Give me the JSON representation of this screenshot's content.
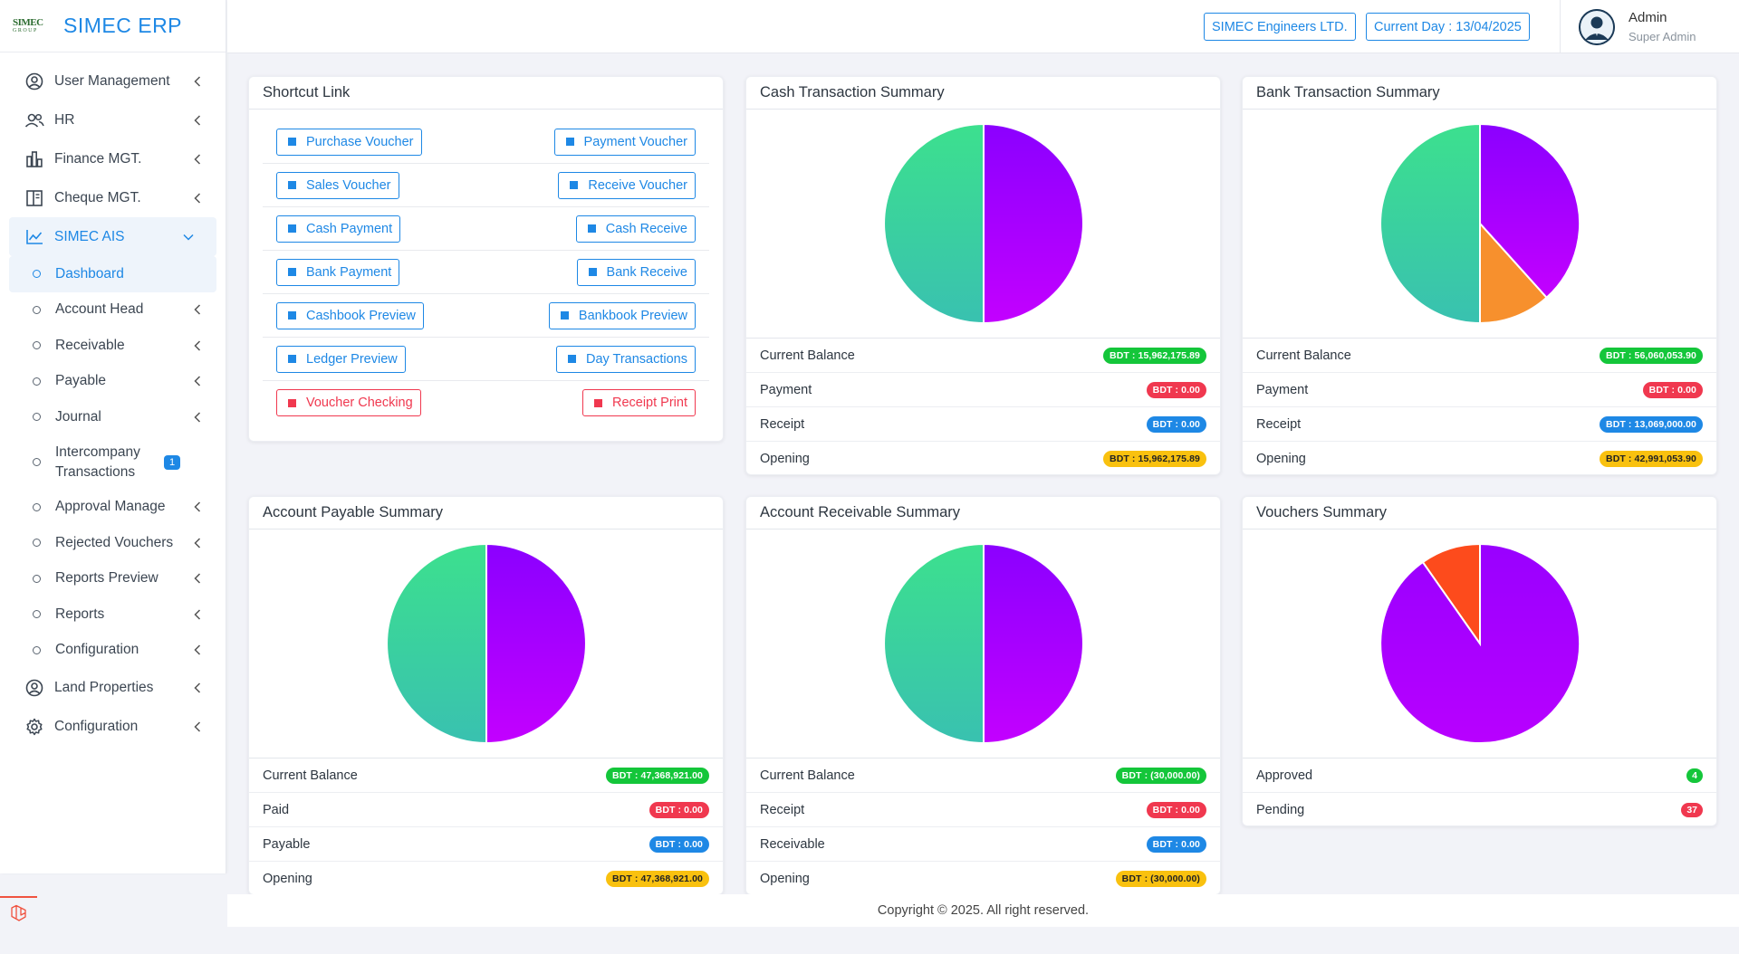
{
  "brand": {
    "logo_top": "SIMEC",
    "logo_bottom": "GROUP",
    "name": "SIMEC ERP"
  },
  "header": {
    "company": "SIMEC Engineers LTD.",
    "current_day": "Current Day : 13/04/2025",
    "user_name": "Admin",
    "user_role": "Super Admin"
  },
  "sidebar": {
    "items": [
      {
        "label": "User Management",
        "icon": "user-circle-icon"
      },
      {
        "label": "HR",
        "icon": "users-icon"
      },
      {
        "label": "Finance MGT.",
        "icon": "bar-chart-icon"
      },
      {
        "label": "Cheque MGT.",
        "icon": "book-icon"
      },
      {
        "label": "SIMEC AIS",
        "icon": "line-chart-icon"
      }
    ],
    "sub_items": [
      {
        "label": "Dashboard"
      },
      {
        "label": "Account Head"
      },
      {
        "label": "Receivable"
      },
      {
        "label": "Payable"
      },
      {
        "label": "Journal"
      },
      {
        "label": "Intercompany Transactions",
        "badge": "1"
      },
      {
        "label": "Approval Manage"
      },
      {
        "label": "Rejected Vouchers"
      },
      {
        "label": "Reports Preview"
      },
      {
        "label": "Reports"
      },
      {
        "label": "Configuration"
      }
    ],
    "bottom_items": [
      {
        "label": "Land Properties",
        "icon": "user-circle-icon"
      },
      {
        "label": "Configuration",
        "icon": "gear-icon"
      }
    ]
  },
  "shortcut": {
    "title": "Shortcut Link",
    "rows": [
      [
        "Purchase Voucher",
        "Payment Voucher"
      ],
      [
        "Sales Voucher",
        "Receive Voucher"
      ],
      [
        "Cash Payment",
        "Cash Receive"
      ],
      [
        "Bank Payment",
        "Bank Receive"
      ],
      [
        "Cashbook Preview",
        "Bankbook Preview"
      ],
      [
        "Ledger Preview",
        "Day Transactions"
      ],
      [
        "Voucher Checking",
        "Receipt Print"
      ]
    ]
  },
  "cash": {
    "title": "Cash Transaction Summary",
    "rows": [
      {
        "label": "Current Balance",
        "value": "BDT : 15,962,175.89"
      },
      {
        "label": "Payment",
        "value": "BDT : 0.00"
      },
      {
        "label": "Receipt",
        "value": "BDT : 0.00"
      },
      {
        "label": "Opening",
        "value": "BDT : 15,962,175.89"
      }
    ]
  },
  "bank": {
    "title": "Bank Transaction Summary",
    "rows": [
      {
        "label": "Current Balance",
        "value": "BDT : 56,060,053.90"
      },
      {
        "label": "Payment",
        "value": "BDT : 0.00"
      },
      {
        "label": "Receipt",
        "value": "BDT : 13,069,000.00"
      },
      {
        "label": "Opening",
        "value": "BDT : 42,991,053.90"
      }
    ]
  },
  "payable": {
    "title": "Account Payable Summary",
    "rows": [
      {
        "label": "Current Balance",
        "value": "BDT : 47,368,921.00"
      },
      {
        "label": "Paid",
        "value": "BDT : 0.00"
      },
      {
        "label": "Payable",
        "value": "BDT : 0.00"
      },
      {
        "label": "Opening",
        "value": "BDT : 47,368,921.00"
      }
    ]
  },
  "receivable": {
    "title": "Account Receivable Summary",
    "rows": [
      {
        "label": "Current Balance",
        "value": "BDT : (30,000.00)"
      },
      {
        "label": "Receipt",
        "value": "BDT : 0.00"
      },
      {
        "label": "Receivable",
        "value": "BDT : 0.00"
      },
      {
        "label": "Opening",
        "value": "BDT : (30,000.00)"
      }
    ]
  },
  "vouchers": {
    "title": "Vouchers Summary",
    "rows": [
      {
        "label": "Approved",
        "value": "4"
      },
      {
        "label": "Pending",
        "value": "37"
      }
    ]
  },
  "colors": {
    "accent": "#1e88e5",
    "green": "#14c63a",
    "red": "#f0384f",
    "yellow": "#f9c10f",
    "purple": "#a100ff",
    "teal": "#3ce08e",
    "orange": "#f7902d"
  },
  "footer": {
    "text": "Copyright © 2025. All right reserved."
  }
}
